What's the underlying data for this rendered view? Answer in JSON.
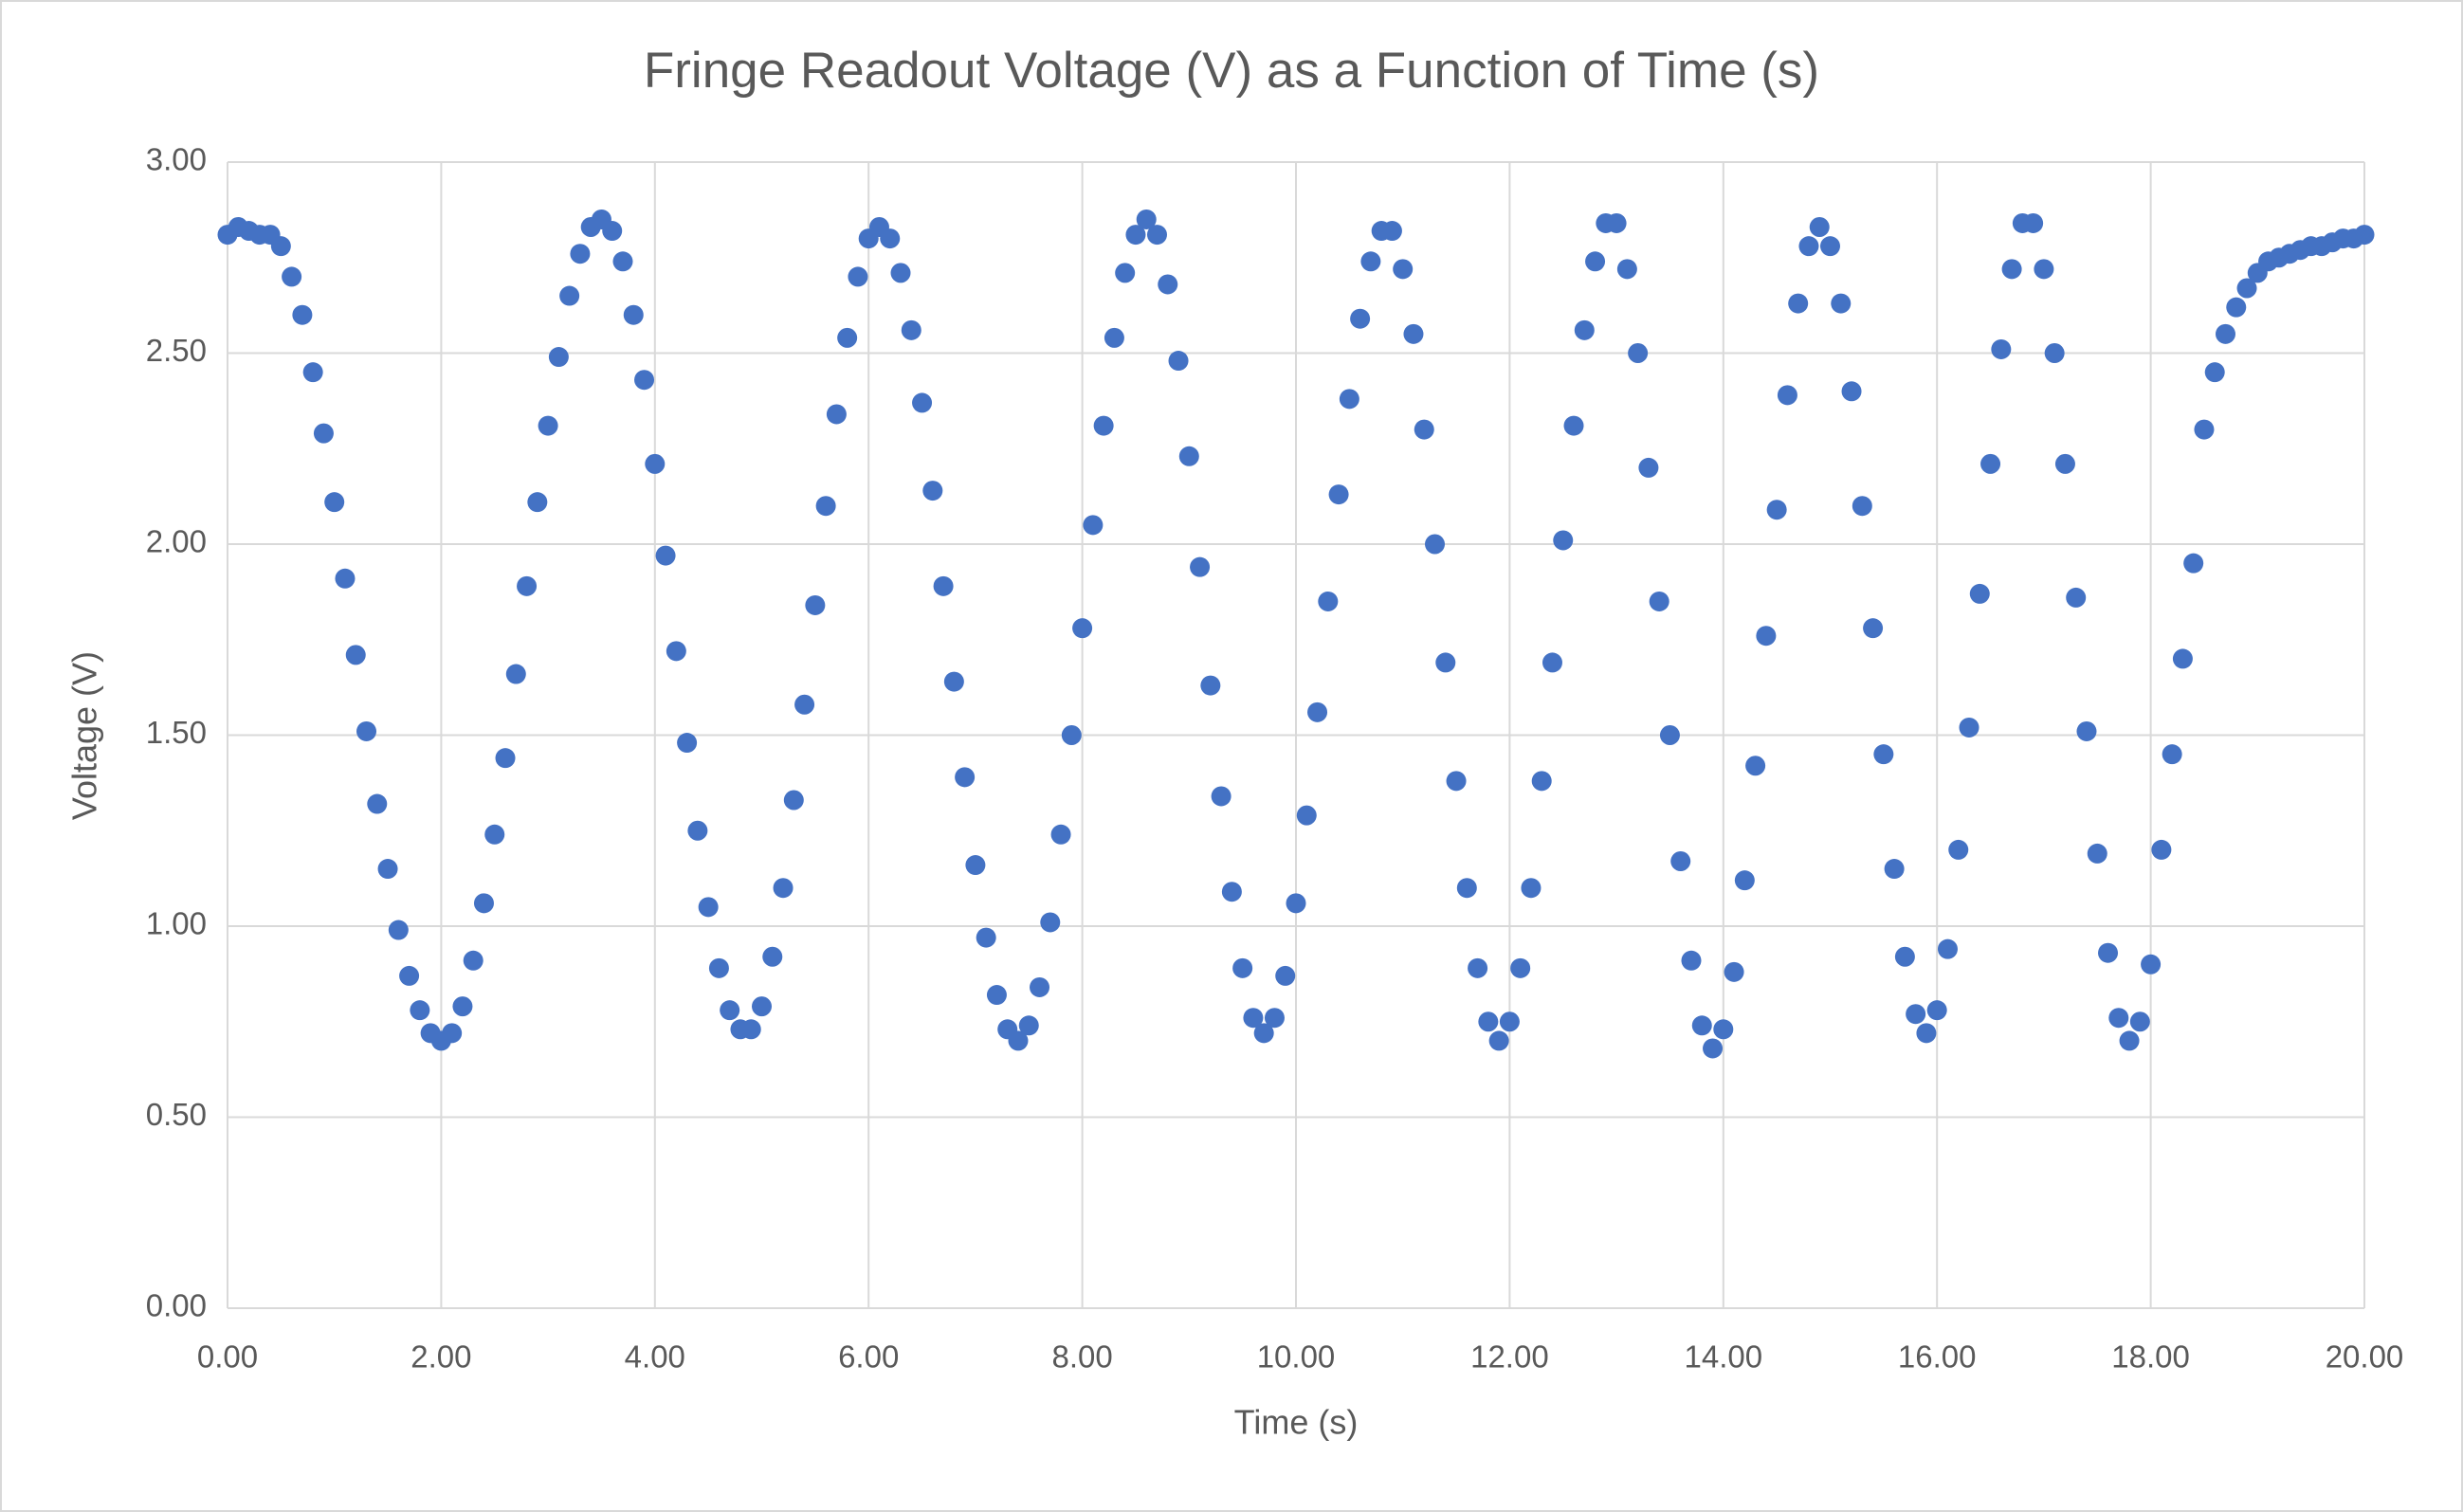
{
  "chart_data": {
    "type": "scatter",
    "title": "Fringe Readout Voltage (V) as a Function of Time (s)",
    "xlabel": "Time (s)",
    "ylabel": "Voltage (V)",
    "color": "#4472c4",
    "grid": true,
    "xlim": [
      0,
      20
    ],
    "ylim": [
      0,
      3
    ],
    "xticks": [
      {
        "value": 0,
        "label": "0.00"
      },
      {
        "value": 2,
        "label": "2.00"
      },
      {
        "value": 4,
        "label": "4.00"
      },
      {
        "value": 6,
        "label": "6.00"
      },
      {
        "value": 8,
        "label": "8.00"
      },
      {
        "value": 10,
        "label": "10.00"
      },
      {
        "value": 12,
        "label": "12.00"
      },
      {
        "value": 14,
        "label": "14.00"
      },
      {
        "value": 16,
        "label": "16.00"
      },
      {
        "value": 18,
        "label": "18.00"
      },
      {
        "value": 20,
        "label": "20.00"
      }
    ],
    "yticks": [
      {
        "value": 0,
        "label": "0.00"
      },
      {
        "value": 0.5,
        "label": "0.50"
      },
      {
        "value": 1,
        "label": "1.00"
      },
      {
        "value": 1.5,
        "label": "1.50"
      },
      {
        "value": 2,
        "label": "2.00"
      },
      {
        "value": 2.5,
        "label": "2.50"
      },
      {
        "value": 3,
        "label": "3.00"
      }
    ],
    "x": [
      0,
      0.1,
      0.2,
      0.3,
      0.4,
      0.5,
      0.6,
      0.7,
      0.8,
      0.9,
      1,
      1.1,
      1.2,
      1.3,
      1.4,
      1.5,
      1.6,
      1.7,
      1.8,
      1.9,
      2,
      2.1,
      2.2,
      2.3,
      2.4,
      2.5,
      2.6,
      2.7,
      2.8,
      2.9,
      3,
      3.1,
      3.2,
      3.3,
      3.4,
      3.5,
      3.6,
      3.7,
      3.8,
      3.9,
      4,
      4.1,
      4.2,
      4.3,
      4.4,
      4.5,
      4.6,
      4.7,
      4.8,
      4.9,
      5,
      5.1,
      5.2,
      5.3,
      5.4,
      5.5,
      5.6,
      5.7,
      5.8,
      5.9,
      6,
      6.1,
      6.2,
      6.3,
      6.4,
      6.5,
      6.6,
      6.7,
      6.8,
      6.9,
      7,
      7.1,
      7.2,
      7.3,
      7.4,
      7.5,
      7.6,
      7.7,
      7.8,
      7.9,
      8,
      8.1,
      8.2,
      8.3,
      8.4,
      8.5,
      8.6,
      8.7,
      8.8,
      8.9,
      9,
      9.1,
      9.2,
      9.3,
      9.4,
      9.5,
      9.6,
      9.7,
      9.8,
      9.9,
      10,
      10.1,
      10.2,
      10.3,
      10.4,
      10.5,
      10.6,
      10.7,
      10.8,
      10.9,
      11,
      11.1,
      11.2,
      11.3,
      11.4,
      11.5,
      11.6,
      11.7,
      11.8,
      11.9,
      12,
      12.1,
      12.2,
      12.3,
      12.4,
      12.5,
      12.6,
      12.7,
      12.8,
      12.9,
      13,
      13.1,
      13.2,
      13.3,
      13.4,
      13.5,
      13.6,
      13.7,
      13.8,
      13.9,
      14,
      14.1,
      14.2,
      14.3,
      14.4,
      14.5,
      14.6,
      14.7,
      14.8,
      14.9,
      15,
      15.1,
      15.2,
      15.3,
      15.4,
      15.5,
      15.6,
      15.7,
      15.8,
      15.9,
      16,
      16.1,
      16.2,
      16.3,
      16.4,
      16.5,
      16.6,
      16.7,
      16.8,
      16.9,
      17,
      17.1,
      17.2,
      17.3,
      17.4,
      17.5,
      17.6,
      17.7,
      17.8,
      17.9,
      18,
      18.1,
      18.2,
      18.3,
      18.4,
      18.5,
      18.6,
      18.7,
      18.8,
      18.9,
      19,
      19.1,
      19.2,
      19.3,
      19.4,
      19.5,
      19.6,
      19.7,
      19.8,
      19.9,
      20
    ],
    "values": [
      2.81,
      2.83,
      2.82,
      2.81,
      2.81,
      2.78,
      2.7,
      2.6,
      2.45,
      2.29,
      2.11,
      1.91,
      1.71,
      1.51,
      1.32,
      1.15,
      0.99,
      0.87,
      0.78,
      0.72,
      0.7,
      0.72,
      0.79,
      0.91,
      1.06,
      1.24,
      1.44,
      1.66,
      1.89,
      2.11,
      2.31,
      2.49,
      2.65,
      2.76,
      2.83,
      2.85,
      2.82,
      2.74,
      2.6,
      2.43,
      2.21,
      1.97,
      1.72,
      1.48,
      1.25,
      1.05,
      0.89,
      0.78,
      0.73,
      0.73,
      0.79,
      0.92,
      1.1,
      1.33,
      1.58,
      1.84,
      2.1,
      2.34,
      2.54,
      2.7,
      2.8,
      2.83,
      2.8,
      2.71,
      2.56,
      2.37,
      2.14,
      1.89,
      1.64,
      1.39,
      1.16,
      0.97,
      0.82,
      0.73,
      0.7,
      0.74,
      0.84,
      1.01,
      1.24,
      1.5,
      1.78,
      2.05,
      2.31,
      2.54,
      2.71,
      2.81,
      2.85,
      2.81,
      2.68,
      2.48,
      2.23,
      1.94,
      1.63,
      1.34,
      1.09,
      0.89,
      0.76,
      0.72,
      0.76,
      0.87,
      1.06,
      1.29,
      1.56,
      1.85,
      2.13,
      2.38,
      2.59,
      2.74,
      2.82,
      2.82,
      2.72,
      2.55,
      2.3,
      2,
      1.69,
      1.38,
      1.1,
      0.89,
      0.75,
      0.7,
      0.75,
      0.89,
      1.1,
      1.38,
      1.69,
      2.01,
      2.31,
      2.56,
      2.74,
      2.84,
      2.84,
      2.72,
      2.5,
      2.2,
      1.85,
      1.5,
      1.17,
      0.91,
      0.74,
      0.68,
      0.73,
      0.88,
      1.12,
      1.42,
      1.76,
      2.09,
      2.39,
      2.63,
      2.78,
      2.83,
      2.78,
      2.63,
      2.4,
      2.1,
      1.78,
      1.45,
      1.15,
      0.92,
      0.77,
      0.72,
      0.78,
      0.94,
      1.2,
      1.52,
      1.87,
      2.21,
      2.51,
      2.72,
      2.84,
      2.84,
      2.72,
      2.5,
      2.21,
      1.86,
      1.51,
      1.19,
      0.93,
      0.76,
      0.7,
      0.75,
      0.9,
      1.2,
      1.45,
      1.7,
      1.95,
      2.3,
      2.45,
      2.55,
      2.62,
      2.67,
      2.71,
      2.74,
      2.75,
      2.76,
      2.77,
      2.78,
      2.78,
      2.79,
      2.8,
      2.8,
      2.81
    ]
  }
}
